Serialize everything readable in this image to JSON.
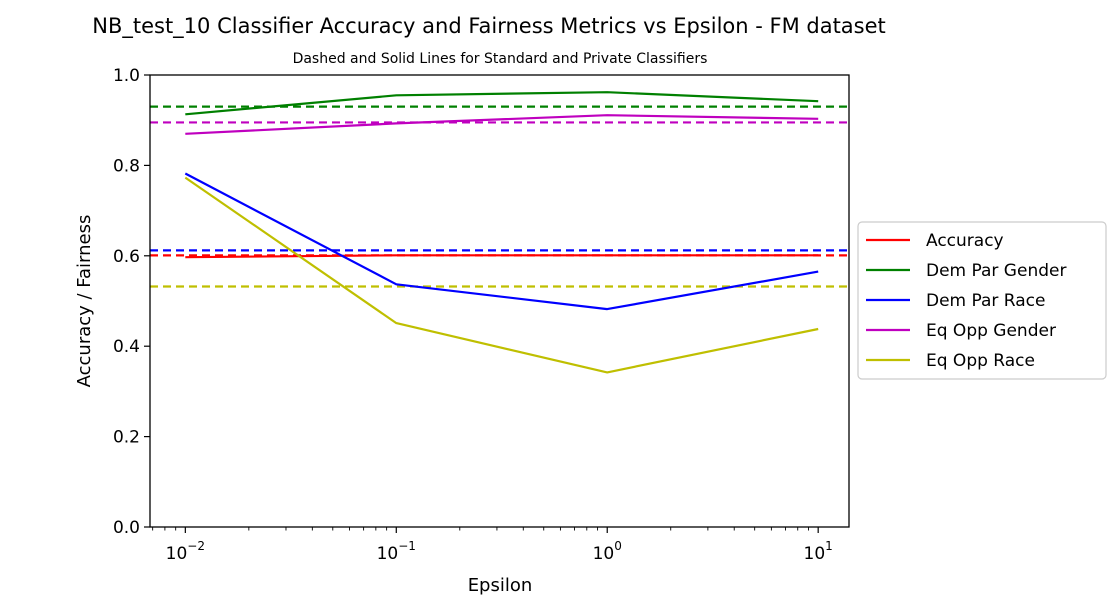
{
  "chart_data": {
    "type": "line",
    "title": "NB_test_10 Classifier Accuracy and Fairness Metrics vs Epsilon - FM dataset",
    "subtitle": "Dashed and Solid Lines for Standard and Private Classifiers",
    "xlabel": "Epsilon",
    "ylabel": "Accuracy / Fairness",
    "xscale": "log",
    "xlim": [
      0.0068,
      14.0
    ],
    "ylim": [
      0.0,
      1.0
    ],
    "x": [
      0.01,
      0.1,
      1,
      10
    ],
    "x_ticks": [
      {
        "value": 0.01,
        "base": "10",
        "exp": "−2"
      },
      {
        "value": 0.1,
        "base": "10",
        "exp": "−1"
      },
      {
        "value": 1,
        "base": "10",
        "exp": "0"
      },
      {
        "value": 10,
        "base": "10",
        "exp": "1"
      }
    ],
    "y_ticks": [
      {
        "value": 0.0,
        "label": "0.0"
      },
      {
        "value": 0.2,
        "label": "0.2"
      },
      {
        "value": 0.4,
        "label": "0.4"
      },
      {
        "value": 0.6,
        "label": "0.6"
      },
      {
        "value": 0.8,
        "label": "0.8"
      },
      {
        "value": 1.0,
        "label": "1.0"
      }
    ],
    "grid": false,
    "legend_position": "right-outside",
    "series": [
      {
        "name": "Accuracy",
        "color": "#ff0000",
        "values": [
          0.597,
          0.601,
          0.601,
          0.601
        ],
        "standard": 0.601
      },
      {
        "name": "Dem Par Gender",
        "color": "#008000",
        "values": [
          0.913,
          0.955,
          0.962,
          0.942
        ],
        "standard": 0.93
      },
      {
        "name": "Dem Par Race",
        "color": "#0000ff",
        "values": [
          0.782,
          0.537,
          0.482,
          0.565
        ],
        "standard": 0.612
      },
      {
        "name": "Eq Opp Gender",
        "color": "#bf00bf",
        "values": [
          0.87,
          0.893,
          0.911,
          0.903
        ],
        "standard": 0.895
      },
      {
        "name": "Eq Opp Race",
        "color": "#bfbf00",
        "values": [
          0.773,
          0.451,
          0.342,
          0.438
        ],
        "standard": 0.532
      }
    ]
  }
}
